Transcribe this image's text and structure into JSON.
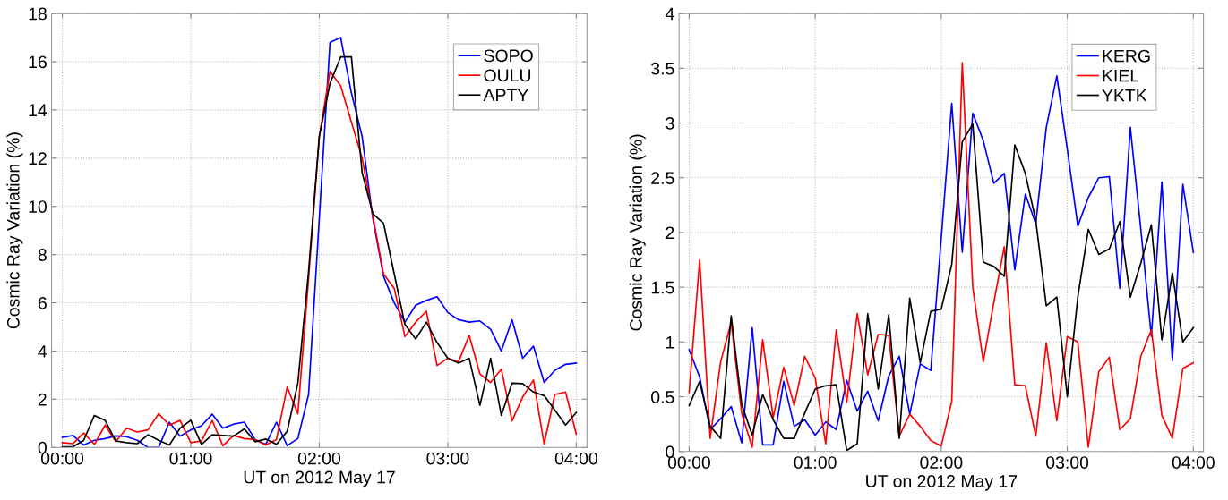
{
  "chart_data": [
    {
      "type": "line",
      "xlabel": "UT on 2012 May 17",
      "ylabel": "Cosmic Ray Variation (%)",
      "x": [
        0,
        0.0833,
        0.1667,
        0.25,
        0.3333,
        0.4167,
        0.5,
        0.5833,
        0.6667,
        0.75,
        0.8333,
        0.9167,
        1,
        1.0833,
        1.1667,
        1.25,
        1.3333,
        1.4167,
        1.5,
        1.5833,
        1.6667,
        1.75,
        1.8333,
        1.9167,
        2,
        2.0833,
        2.1667,
        2.25,
        2.3333,
        2.4167,
        2.5,
        2.5833,
        2.6667,
        2.75,
        2.8333,
        2.9167,
        3,
        3.0833,
        3.1667,
        3.25,
        3.3333,
        3.4167,
        3.5,
        3.5833,
        3.6667,
        3.75,
        3.8333,
        3.9167,
        4
      ],
      "series": [
        {
          "name": "SOPO",
          "color": "#0000ff",
          "values": [
            0.42,
            0.5,
            0.1,
            0.3,
            0.37,
            0.48,
            0.45,
            0.3,
            0.0,
            0.0,
            1.05,
            0.47,
            0.73,
            0.9,
            1.38,
            0.8,
            0.97,
            1.05,
            0.33,
            0.13,
            1.05,
            0.08,
            0.37,
            2.2,
            9.5,
            16.8,
            17.0,
            14.7,
            12.9,
            9.5,
            7.1,
            6.0,
            5.2,
            5.9,
            6.1,
            6.25,
            5.6,
            5.3,
            5.2,
            5.25,
            4.9,
            4.0,
            5.3,
            3.7,
            4.2,
            2.7,
            3.2,
            3.45,
            3.5
          ]
        },
        {
          "name": "OULU",
          "color": "#ff0000",
          "values": [
            0.2,
            0.16,
            0.6,
            0.13,
            0.93,
            0.24,
            0.8,
            0.64,
            0.73,
            1.4,
            0.93,
            1.12,
            0.2,
            0.27,
            1.12,
            0.07,
            0.5,
            0.37,
            0.33,
            0.1,
            0.33,
            2.5,
            1.4,
            7.0,
            12.9,
            15.6,
            15.0,
            13.5,
            12.0,
            9.6,
            7.2,
            6.6,
            4.6,
            5.2,
            5.65,
            3.4,
            3.7,
            3.55,
            4.65,
            3.05,
            2.7,
            3.25,
            1.1,
            2.1,
            2.8,
            0.15,
            2.2,
            2.3,
            0.55
          ]
        },
        {
          "name": "APTY",
          "color": "#000000",
          "values": [
            0.03,
            0.03,
            0.3,
            1.33,
            1.12,
            0.27,
            0.2,
            0.16,
            0.53,
            0.3,
            0.1,
            0.8,
            1.13,
            0.13,
            0.53,
            0.5,
            0.47,
            0.77,
            0.24,
            0.35,
            0.13,
            0.67,
            2.67,
            7.3,
            12.9,
            15.1,
            16.2,
            16.2,
            11.4,
            9.7,
            9.3,
            7.2,
            5.1,
            4.5,
            5.2,
            4.35,
            3.7,
            3.5,
            3.7,
            1.75,
            3.7,
            1.33,
            2.67,
            2.65,
            2.3,
            2.15,
            1.55,
            0.93,
            1.45
          ]
        }
      ],
      "xlim": [
        -0.0833,
        4.0833
      ],
      "xticks": [
        {
          "value": 0,
          "label": "00:00"
        },
        {
          "value": 1,
          "label": "01:00"
        },
        {
          "value": 2,
          "label": "02:00"
        },
        {
          "value": 3,
          "label": "03:00"
        },
        {
          "value": 4,
          "label": "04:00"
        }
      ],
      "ylim": [
        0,
        18
      ],
      "yticks": [
        0,
        2,
        4,
        6,
        8,
        10,
        12,
        14,
        16,
        18
      ],
      "grid": true,
      "legend": "top right",
      "line_style": "solid",
      "marker": "none"
    },
    {
      "type": "line",
      "xlabel": "UT on 2012 May 17",
      "ylabel": "Cosmic Ray Variation (%)",
      "x": [
        0,
        0.0833,
        0.1667,
        0.25,
        0.3333,
        0.4167,
        0.5,
        0.5833,
        0.6667,
        0.75,
        0.8333,
        0.9167,
        1,
        1.0833,
        1.1667,
        1.25,
        1.3333,
        1.4167,
        1.5,
        1.5833,
        1.6667,
        1.75,
        1.8333,
        1.9167,
        2,
        2.0833,
        2.1667,
        2.25,
        2.3333,
        2.4167,
        2.5,
        2.5833,
        2.6667,
        2.75,
        2.8333,
        2.9167,
        3,
        3.0833,
        3.1667,
        3.25,
        3.3333,
        3.4167,
        3.5,
        3.5833,
        3.6667,
        3.75,
        3.8333,
        3.9167,
        4
      ],
      "series": [
        {
          "name": "KERG",
          "color": "#0000ff",
          "values": [
            0.93,
            0.68,
            0.2,
            0.3,
            0.41,
            0.08,
            1.13,
            0.06,
            0.06,
            0.64,
            0.23,
            0.29,
            0.15,
            0.27,
            0.2,
            0.65,
            0.37,
            0.55,
            0.28,
            0.69,
            0.87,
            0.34,
            0.8,
            0.74,
            1.95,
            3.18,
            1.82,
            3.09,
            2.84,
            2.45,
            2.54,
            1.66,
            2.35,
            2.08,
            2.96,
            3.43,
            2.76,
            2.06,
            2.32,
            2.5,
            2.51,
            1.49,
            2.96,
            2.03,
            1.05,
            2.46,
            0.83,
            2.44,
            1.82
          ]
        },
        {
          "name": "KIEL",
          "color": "#ff0000",
          "values": [
            0.54,
            1.75,
            0.12,
            0.82,
            1.18,
            0.35,
            0.04,
            1.02,
            0.31,
            0.77,
            0.42,
            0.87,
            0.67,
            0.07,
            1.11,
            0.45,
            1.26,
            0.7,
            1.07,
            1.06,
            0.14,
            0.34,
            0.23,
            0.1,
            0.05,
            0.46,
            3.55,
            1.5,
            0.82,
            1.36,
            1.87,
            0.61,
            0.6,
            0.14,
            0.99,
            0.28,
            1.05,
            1.0,
            0.04,
            0.73,
            0.86,
            0.2,
            0.3,
            0.87,
            1.11,
            0.33,
            0.12,
            0.76,
            0.81
          ]
        },
        {
          "name": "YKTK",
          "color": "#000000",
          "values": [
            0.42,
            0.64,
            0.23,
            0.12,
            1.24,
            0.43,
            0.15,
            0.52,
            0.29,
            0.12,
            0.12,
            0.35,
            0.57,
            0.6,
            0.61,
            0.01,
            0.07,
            1.26,
            0.57,
            1.25,
            0.12,
            1.4,
            0.81,
            1.28,
            1.3,
            1.71,
            2.83,
            2.99,
            1.73,
            1.69,
            1.6,
            2.8,
            2.54,
            2.11,
            1.33,
            1.41,
            0.5,
            1.41,
            2.03,
            1.8,
            1.85,
            2.1,
            1.41,
            1.72,
            2.07,
            1.02,
            1.63,
            1.0,
            1.13
          ]
        }
      ],
      "xlim": [
        -0.08,
        4.08
      ],
      "xticks": [
        {
          "value": 0,
          "label": "00:00"
        },
        {
          "value": 1,
          "label": "01:00"
        },
        {
          "value": 2,
          "label": "02:00"
        },
        {
          "value": 3,
          "label": "03:00"
        },
        {
          "value": 4,
          "label": "04:00"
        }
      ],
      "ylim": [
        0,
        4
      ],
      "yticks": [
        0,
        0.5,
        1,
        1.5,
        2,
        2.5,
        3,
        3.5,
        4
      ],
      "grid": true,
      "legend": "top right",
      "line_style": "solid",
      "marker": "none"
    }
  ]
}
